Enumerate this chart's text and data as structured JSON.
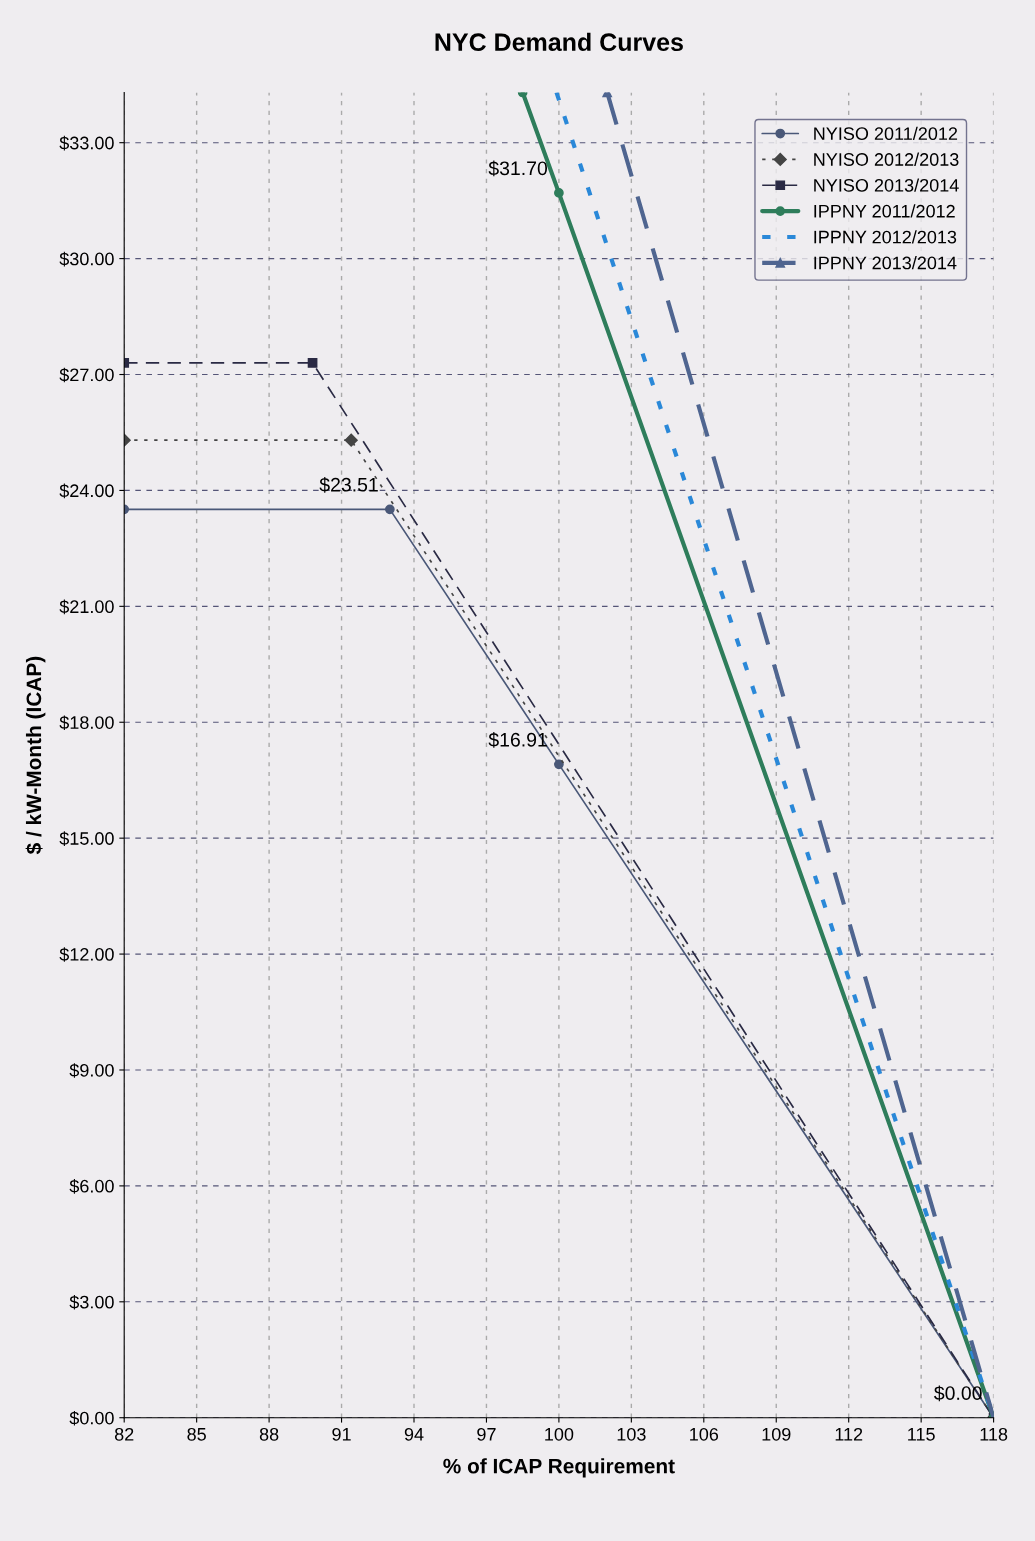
{
  "chart_data": {
    "type": "line",
    "title": "NYC Demand Curves",
    "xlabel": "% of ICAP Requirement",
    "ylabel": "$ / kW-Month (ICAP)",
    "xlim": [
      82,
      118
    ],
    "xticks": [
      82,
      85,
      88,
      91,
      94,
      97,
      100,
      103,
      106,
      109,
      112,
      115,
      118
    ],
    "ylim": [
      0,
      34.3
    ],
    "yticks": [
      {
        "value": 0,
        "label": "$0.00"
      },
      {
        "value": 3,
        "label": "$3.00"
      },
      {
        "value": 6,
        "label": "$6.00"
      },
      {
        "value": 9,
        "label": "$9.00"
      },
      {
        "value": 12,
        "label": "$12.00"
      },
      {
        "value": 15,
        "label": "$15.00"
      },
      {
        "value": 18,
        "label": "$18.00"
      },
      {
        "value": 21,
        "label": "$21.00"
      },
      {
        "value": 24,
        "label": "$24.00"
      },
      {
        "value": 27,
        "label": "$27.00"
      },
      {
        "value": 30,
        "label": "$30.00"
      },
      {
        "value": 33,
        "label": "$33.00"
      }
    ],
    "grid": true,
    "legend": "top right",
    "series": [
      {
        "name": "NYISO 2011/2012",
        "color": "#4a5878",
        "x": [
          82,
          93,
          100,
          118
        ],
        "values": [
          23.51,
          23.51,
          16.91,
          0
        ],
        "line_style": "solid",
        "marker": "circle"
      },
      {
        "name": "NYISO 2012/2013",
        "color": "#444444",
        "x": [
          82,
          91.4,
          118
        ],
        "values": [
          25.3,
          25.3,
          0
        ],
        "line_style": "dotted",
        "marker": "diamond"
      },
      {
        "name": "NYISO 2013/2014",
        "color": "#2a2a44",
        "x": [
          82,
          89.8,
          118
        ],
        "values": [
          27.3,
          27.3,
          0
        ],
        "line_style": "dashed",
        "marker": "square"
      },
      {
        "name": "IPPNY 2011/2012",
        "color": "#2e7d5b",
        "x": [
          98.5,
          100,
          118
        ],
        "values": [
          34.3,
          31.7,
          0
        ],
        "line_style": "solid",
        "marker": "circle"
      },
      {
        "name": "IPPNY 2012/2013",
        "color": "#2a88d8",
        "x": [
          99.9,
          118
        ],
        "values": [
          34.3,
          0
        ],
        "line_style": "dotted",
        "marker": "none"
      },
      {
        "name": "IPPNY 2013/2014",
        "color": "#4f6590",
        "x": [
          102.0,
          118
        ],
        "values": [
          34.3,
          0
        ],
        "line_style": "dashed",
        "marker": "triangle"
      }
    ],
    "annotations": [
      {
        "text": "$31.70",
        "x": 100,
        "y": 31.7
      },
      {
        "text": "$23.51",
        "x": 93,
        "y": 23.51
      },
      {
        "text": "$16.91",
        "x": 100,
        "y": 16.91
      },
      {
        "text": "$0.00",
        "x": 118,
        "y": 0
      }
    ]
  }
}
